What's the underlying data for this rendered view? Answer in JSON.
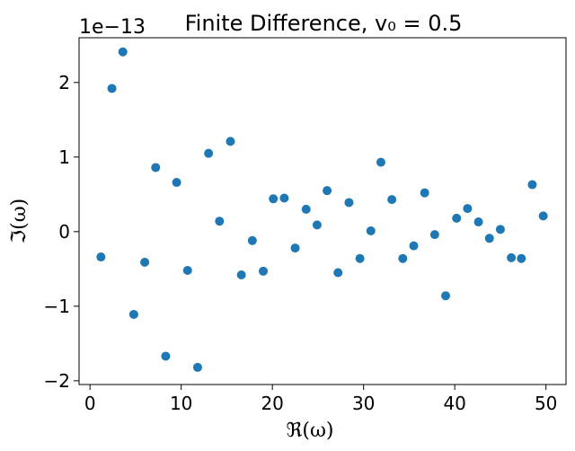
{
  "chart_data": {
    "type": "scatter",
    "title": "Finite Difference, v₀ = 0.5",
    "xlabel": "ℜ(ω)",
    "ylabel": "ℑ(ω)",
    "y_offset_text": "1e−13",
    "y_scale": 1e-13,
    "xlim": [
      -1.2,
      52.2
    ],
    "ylim": [
      -2.05,
      2.6
    ],
    "x_ticks": [
      0,
      10,
      20,
      30,
      40,
      50
    ],
    "y_ticks": [
      -2,
      -1,
      0,
      1,
      2
    ],
    "grid": false,
    "marker_color": "#1f77b4",
    "x": [
      1.2,
      2.4,
      3.6,
      4.8,
      6.0,
      7.2,
      8.3,
      9.5,
      10.7,
      11.8,
      13.0,
      14.2,
      15.4,
      16.6,
      17.8,
      19.0,
      20.1,
      21.3,
      22.5,
      23.7,
      24.9,
      26.0,
      27.2,
      28.4,
      29.6,
      30.8,
      31.9,
      33.1,
      34.3,
      35.5,
      36.7,
      37.8,
      39.0,
      40.2,
      41.4,
      42.6,
      43.8,
      45.0,
      46.2,
      47.3,
      48.5,
      49.7
    ],
    "y": [
      -0.34,
      1.92,
      2.41,
      -1.11,
      -0.41,
      0.86,
      -1.67,
      0.66,
      -0.52,
      -1.82,
      1.05,
      0.14,
      1.21,
      -0.58,
      -0.12,
      -0.53,
      0.44,
      0.45,
      -0.22,
      0.3,
      0.09,
      0.55,
      -0.55,
      0.39,
      -0.36,
      0.01,
      0.93,
      0.43,
      -0.36,
      -0.19,
      0.52,
      -0.04,
      -0.86,
      0.18,
      0.31,
      0.13,
      -0.09,
      0.03,
      -0.35,
      -0.36,
      0.63,
      0.21
    ]
  }
}
